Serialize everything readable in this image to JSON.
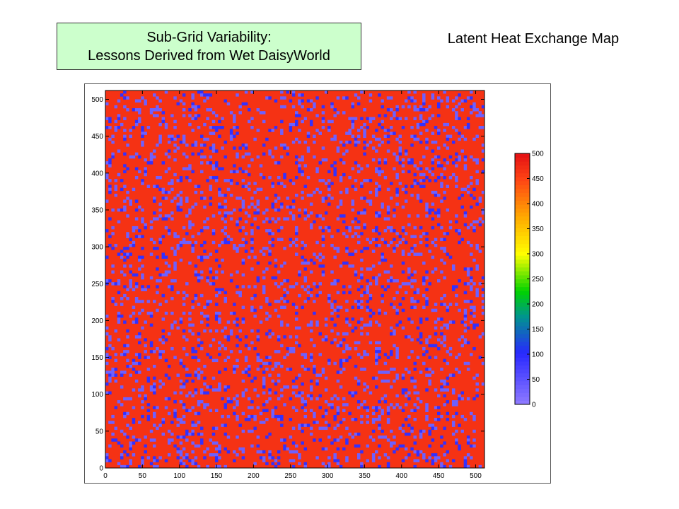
{
  "header": {
    "title_line1": "Sub-Grid Variability:",
    "title_line2": "Lessons Derived from Wet DaisyWorld"
  },
  "map_title": "Latent Heat Exchange Map",
  "colors": {
    "title_box_bg": "#ccffcc",
    "dominant_cell": "#ee3a2a",
    "low_cell": "#3a3aee",
    "mid_cell": "#8878d8"
  },
  "chart_data": {
    "type": "heatmap",
    "title": "",
    "xlabel": "",
    "ylabel": "",
    "xlim": [
      0,
      512
    ],
    "ylim": [
      0,
      512
    ],
    "x_ticks": [
      "0",
      "50",
      "100",
      "150",
      "200",
      "250",
      "300",
      "350",
      "400",
      "450",
      "500"
    ],
    "y_ticks": [
      "0",
      "50",
      "100",
      "150",
      "200",
      "250",
      "300",
      "350",
      "400",
      "450",
      "500"
    ],
    "grid": false,
    "description": "",
    "value_distribution": [
      {
        "value": 470,
        "share": 0.82
      },
      {
        "value": 30,
        "share": 0.12
      },
      {
        "value": 90,
        "share": 0.06
      }
    ],
    "colorbar": {
      "range": [
        0,
        500
      ],
      "ticks": [
        "0",
        "50",
        "100",
        "150",
        "200",
        "250",
        "300",
        "350",
        "400",
        "450",
        "500"
      ],
      "colormap": "jet",
      "placement": "right"
    }
  }
}
